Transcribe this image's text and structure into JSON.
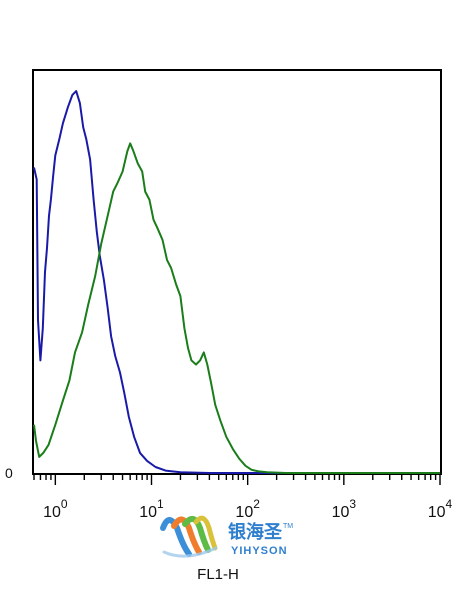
{
  "chart_data": {
    "type": "line",
    "title": "",
    "xlabel": "FL1-H",
    "ylabel": "",
    "x_scale": "log",
    "xlim": [
      0.6,
      10000
    ],
    "ylim": [
      0,
      100
    ],
    "y_ticks": [
      {
        "value": 0,
        "label": "0"
      }
    ],
    "x_ticks": [
      {
        "value": 1,
        "base": "10",
        "exp": "0"
      },
      {
        "value": 10,
        "base": "10",
        "exp": "1"
      },
      {
        "value": 100,
        "base": "10",
        "exp": "2"
      },
      {
        "value": 1000,
        "base": "10",
        "exp": "3"
      },
      {
        "value": 10000,
        "base": "10",
        "exp": "4"
      }
    ],
    "grid": false,
    "legend": "none",
    "series": [
      {
        "color": "#1a1aa8",
        "points": [
          [
            0.6,
            76
          ],
          [
            0.64,
            73
          ],
          [
            0.66,
            38
          ],
          [
            0.7,
            28
          ],
          [
            0.74,
            36
          ],
          [
            0.78,
            50
          ],
          [
            0.82,
            56
          ],
          [
            0.86,
            64
          ],
          [
            0.9,
            68
          ],
          [
            0.95,
            74
          ],
          [
            1.0,
            79
          ],
          [
            1.1,
            83
          ],
          [
            1.2,
            87
          ],
          [
            1.35,
            91
          ],
          [
            1.5,
            94
          ],
          [
            1.65,
            95
          ],
          [
            1.8,
            92
          ],
          [
            1.95,
            86
          ],
          [
            2.1,
            83
          ],
          [
            2.3,
            78
          ],
          [
            2.5,
            68
          ],
          [
            2.7,
            60
          ],
          [
            2.9,
            54
          ],
          [
            3.2,
            48
          ],
          [
            3.5,
            41
          ],
          [
            3.8,
            34
          ],
          [
            4.2,
            29
          ],
          [
            4.7,
            25
          ],
          [
            5.2,
            20
          ],
          [
            5.8,
            14
          ],
          [
            6.6,
            9
          ],
          [
            7.6,
            5
          ],
          [
            9,
            3
          ],
          [
            11,
            1.5
          ],
          [
            14,
            0.6
          ],
          [
            20,
            0.2
          ],
          [
            40,
            0
          ],
          [
            10000,
            0
          ]
        ]
      },
      {
        "color": "#1a7d1a",
        "points": [
          [
            0.6,
            12
          ],
          [
            0.63,
            8
          ],
          [
            0.68,
            4
          ],
          [
            0.75,
            5
          ],
          [
            0.85,
            7
          ],
          [
            1.0,
            12
          ],
          [
            1.2,
            18
          ],
          [
            1.4,
            23
          ],
          [
            1.6,
            30
          ],
          [
            1.9,
            35
          ],
          [
            2.2,
            42
          ],
          [
            2.6,
            49
          ],
          [
            3.0,
            57
          ],
          [
            3.5,
            64
          ],
          [
            4.0,
            70
          ],
          [
            4.4,
            72
          ],
          [
            5.0,
            75
          ],
          [
            5.6,
            80
          ],
          [
            6.0,
            82
          ],
          [
            6.5,
            80
          ],
          [
            7.2,
            77
          ],
          [
            8.0,
            75
          ],
          [
            8.6,
            70
          ],
          [
            9.5,
            68
          ],
          [
            10.5,
            63
          ],
          [
            11.5,
            61
          ],
          [
            13,
            58
          ],
          [
            14.5,
            53
          ],
          [
            16,
            51
          ],
          [
            18,
            47
          ],
          [
            20,
            44
          ],
          [
            22,
            36
          ],
          [
            24,
            31
          ],
          [
            26,
            28
          ],
          [
            29,
            27
          ],
          [
            32,
            28
          ],
          [
            35,
            30
          ],
          [
            38,
            27
          ],
          [
            42,
            22
          ],
          [
            46,
            17
          ],
          [
            52,
            13
          ],
          [
            60,
            9
          ],
          [
            70,
            6
          ],
          [
            82,
            3.5
          ],
          [
            95,
            1.8
          ],
          [
            110,
            0.8
          ],
          [
            130,
            0.4
          ],
          [
            160,
            0.2
          ],
          [
            250,
            0
          ],
          [
            10000,
            0
          ]
        ]
      }
    ]
  },
  "watermark": {
    "brand_cn": "银海圣",
    "trademark": "TM",
    "brand_en": "YIHYSON"
  }
}
